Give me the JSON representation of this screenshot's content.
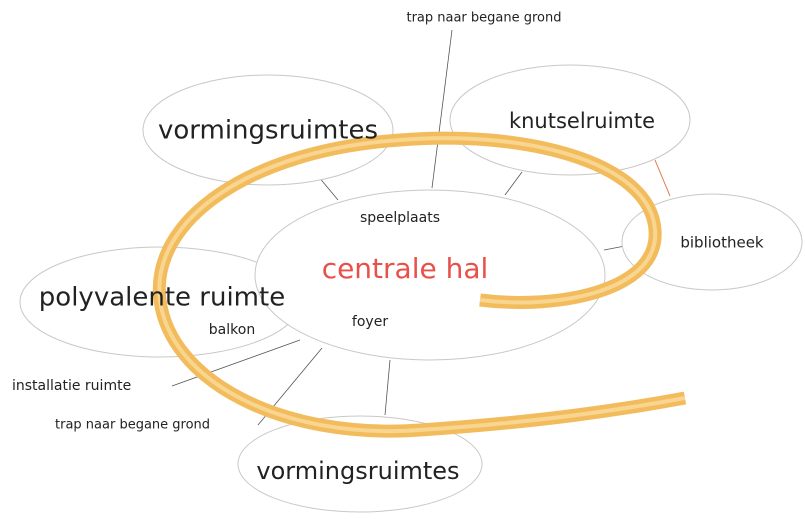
{
  "nodes": [
    {
      "label": "vormingsruimtes"
    },
    {
      "label": "knutselruimte"
    },
    {
      "label": "bibliotheek"
    },
    {
      "label": "centrale hal"
    },
    {
      "label": "polyvalente ruimte"
    },
    {
      "label": "vormingsruimtes"
    }
  ],
  "labels": [
    "trap naar begane grond",
    "speelplaats",
    "foyer",
    "balkon",
    "installatie ruimte",
    "trap naar begane grond"
  ]
}
